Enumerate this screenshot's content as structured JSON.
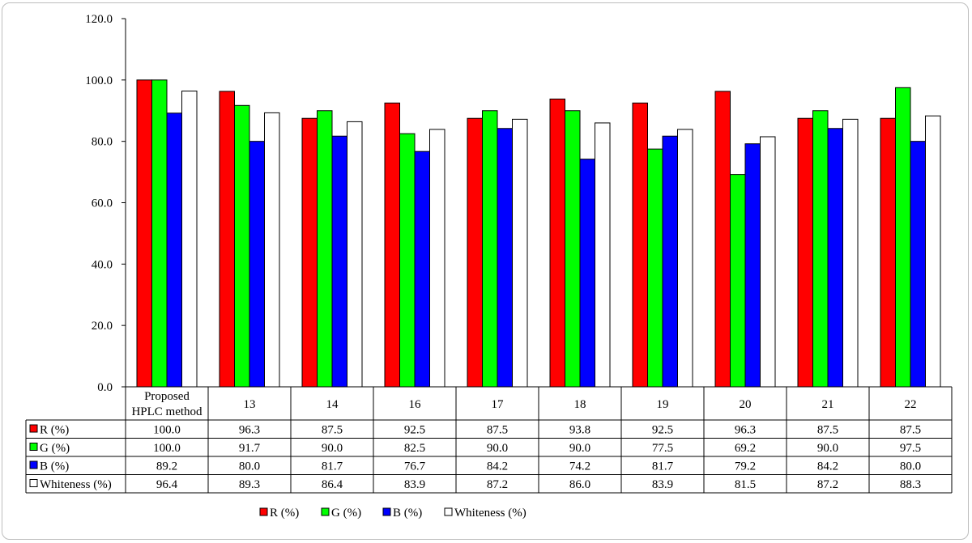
{
  "chart_data": {
    "type": "bar",
    "categories": [
      "Proposed HPLC method",
      "13",
      "14",
      "16",
      "17",
      "18",
      "19",
      "20",
      "21",
      "22"
    ],
    "category_lines": [
      [
        "Proposed",
        "HPLC method"
      ],
      [
        "13"
      ],
      [
        "14"
      ],
      [
        "16"
      ],
      [
        "17"
      ],
      [
        "18"
      ],
      [
        "19"
      ],
      [
        "20"
      ],
      [
        "21"
      ],
      [
        "22"
      ]
    ],
    "series": [
      {
        "name": "R (%)",
        "color": "#ff0000",
        "values": [
          100.0,
          96.3,
          87.5,
          92.5,
          87.5,
          93.8,
          92.5,
          96.3,
          87.5,
          87.5
        ]
      },
      {
        "name": "G (%)",
        "color": "#00ff00",
        "values": [
          100.0,
          91.7,
          90.0,
          82.5,
          90.0,
          90.0,
          77.5,
          69.2,
          90.0,
          97.5
        ]
      },
      {
        "name": "B (%)",
        "color": "#0000ff",
        "values": [
          89.2,
          80.0,
          81.7,
          76.7,
          84.2,
          74.2,
          81.7,
          79.2,
          84.2,
          80.0
        ]
      },
      {
        "name": "Whiteness (%)",
        "color": "#ffffff",
        "values": [
          96.4,
          89.3,
          86.4,
          83.9,
          87.2,
          86.0,
          83.9,
          81.5,
          87.2,
          88.3
        ]
      }
    ],
    "ylim": [
      0,
      120
    ],
    "yticks": [
      "0.0",
      "20.0",
      "40.0",
      "60.0",
      "80.0",
      "100.0",
      "120.0"
    ],
    "grid": false,
    "data_table": true,
    "legend_position": "bottom"
  }
}
